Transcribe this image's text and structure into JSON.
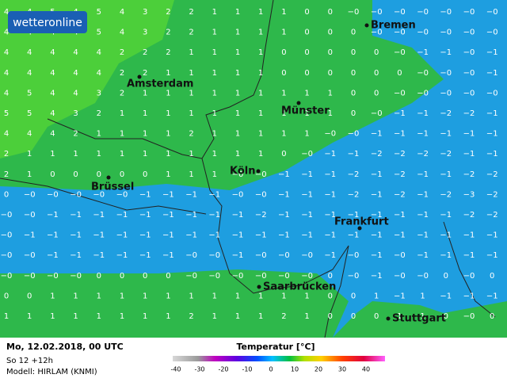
{
  "logo": "wetteronline",
  "cities": [
    {
      "name": "Bremen"
    },
    {
      "name": "Amsterdam"
    },
    {
      "name": "Münster"
    },
    {
      "name": "Brüssel"
    },
    {
      "name": "Köln"
    },
    {
      "name": "Frankfurt"
    },
    {
      "name": "Saarbrücken"
    },
    {
      "name": "Stuttgart"
    }
  ],
  "grid": [
    [
      "4",
      "4",
      "5",
      "4",
      "5",
      "4",
      "3",
      "2",
      "2",
      "1",
      "1",
      "1",
      "1",
      "0",
      "0",
      "−0",
      "−0",
      "−0",
      "−0",
      "−0",
      "−0",
      "−0"
    ],
    [
      "4",
      "4",
      "4",
      "4",
      "5",
      "4",
      "3",
      "2",
      "2",
      "1",
      "1",
      "1",
      "1",
      "0",
      "0",
      "0",
      "−0",
      "−0",
      "−0",
      "−0",
      "−0",
      "−0"
    ],
    [
      "4",
      "4",
      "4",
      "4",
      "4",
      "2",
      "2",
      "2",
      "1",
      "1",
      "1",
      "1",
      "0",
      "0",
      "0",
      "0",
      "0",
      "−0",
      "−1",
      "−1",
      "−0",
      "−1"
    ],
    [
      "4",
      "4",
      "4",
      "4",
      "4",
      "2",
      "2",
      "1",
      "1",
      "1",
      "1",
      "1",
      "0",
      "0",
      "0",
      "0",
      "0",
      "0",
      "−0",
      "−0",
      "−0",
      "−1"
    ],
    [
      "4",
      "5",
      "4",
      "4",
      "3",
      "2",
      "1",
      "1",
      "1",
      "1",
      "1",
      "1",
      "1",
      "1",
      "1",
      "0",
      "0",
      "−0",
      "−0",
      "−0",
      "−0",
      "−0"
    ],
    [
      "5",
      "5",
      "4",
      "3",
      "2",
      "1",
      "1",
      "1",
      "1",
      "1",
      "1",
      "1",
      "1",
      "1",
      "1",
      "0",
      "−0",
      "−1",
      "−1",
      "−2",
      "−2",
      "−1"
    ],
    [
      "4",
      "4",
      "4",
      "2",
      "1",
      "1",
      "1",
      "1",
      "2",
      "1",
      "1",
      "1",
      "1",
      "1",
      "−0",
      "−0",
      "−1",
      "−1",
      "−1",
      "−1",
      "−1",
      "−1"
    ],
    [
      "2",
      "1",
      "1",
      "1",
      "1",
      "1",
      "1",
      "1",
      "1",
      "1",
      "1",
      "1",
      "0",
      "−0",
      "−1",
      "−1",
      "−2",
      "−2",
      "−2",
      "−2",
      "−1",
      "−1"
    ],
    [
      "2",
      "1",
      "0",
      "0",
      "0",
      "0",
      "0",
      "1",
      "1",
      "1",
      "−0",
      "−0",
      "−1",
      "−1",
      "−1",
      "−2",
      "−1",
      "−2",
      "−1",
      "−1",
      "−2",
      "−2"
    ],
    [
      "0",
      "−0",
      "−0",
      "−0",
      "−0",
      "−0",
      "−1",
      "−1",
      "−1",
      "−1",
      "−0",
      "−0",
      "−1",
      "−1",
      "−1",
      "−2",
      "−1",
      "−2",
      "−1",
      "−2",
      "−3",
      "−2"
    ],
    [
      "−0",
      "−0",
      "−1",
      "−1",
      "−1",
      "−1",
      "−1",
      "−1",
      "−1",
      "−1",
      "−1",
      "−2",
      "−1",
      "−1",
      "−1",
      "−1",
      "−1",
      "−1",
      "−1",
      "−1",
      "−2",
      "−2"
    ],
    [
      "−0",
      "−1",
      "−1",
      "−1",
      "−1",
      "−1",
      "−1",
      "−1",
      "−1",
      "−1",
      "−1",
      "−1",
      "−1",
      "−1",
      "−1",
      "−1",
      "−1",
      "−1",
      "−1",
      "−1",
      "−1",
      "−1"
    ],
    [
      "−0",
      "−0",
      "−1",
      "−1",
      "−1",
      "−1",
      "−1",
      "−1",
      "−0",
      "−0",
      "−1",
      "−0",
      "−0",
      "−0",
      "−1",
      "−0",
      "−1",
      "−0",
      "−1",
      "−1",
      "−1",
      "−1"
    ],
    [
      "−0",
      "−0",
      "−0",
      "−0",
      "0",
      "0",
      "0",
      "0",
      "−0",
      "−0",
      "−0",
      "−0",
      "−0",
      "−0",
      "0",
      "−0",
      "−1",
      "−0",
      "−0",
      "0",
      "−0",
      "0"
    ],
    [
      "0",
      "0",
      "1",
      "1",
      "1",
      "1",
      "1",
      "1",
      "1",
      "1",
      "1",
      "1",
      "1",
      "1",
      "0",
      "0",
      "1",
      "−1",
      "1",
      "−1",
      "−1",
      "−1"
    ],
    [
      "1",
      "1",
      "1",
      "1",
      "1",
      "1",
      "1",
      "1",
      "2",
      "1",
      "1",
      "1",
      "2",
      "1",
      "0",
      "0",
      "0",
      "1",
      "1",
      "0",
      "−0",
      "0"
    ]
  ],
  "footer": {
    "date": "Mo, 12.02.2018, 00 UTC",
    "run": "So 12 +12h",
    "model": "Modell: HIRLAM (KNMI)"
  },
  "legend": {
    "title": "Temperatur [°C]",
    "ticks": [
      -40,
      -30,
      -20,
      -10,
      0,
      10,
      20,
      30,
      40
    ]
  }
}
